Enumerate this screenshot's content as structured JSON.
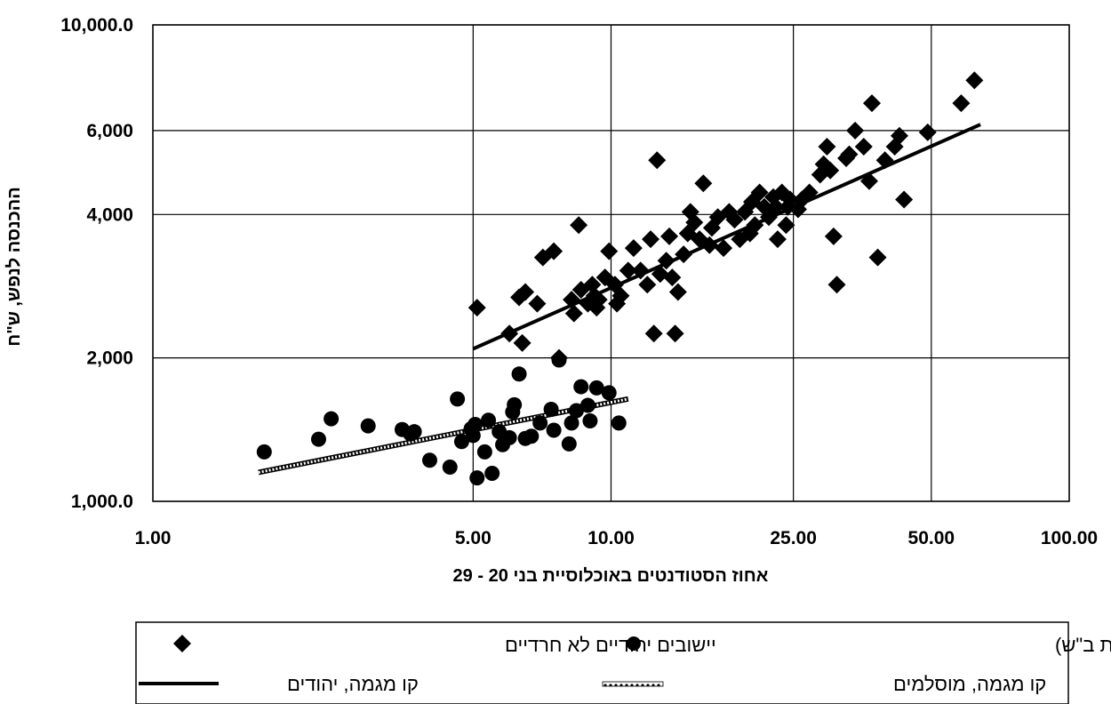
{
  "chart_data": {
    "type": "scatter",
    "title": "",
    "xlabel": "אחוז הסטודנטים באוכלוסיית בני 20 - 29",
    "ylabel": "ההכנסה לנפש, ש\"ח",
    "x_scale": "log",
    "y_scale": "log",
    "xlim": [
      1,
      100
    ],
    "ylim": [
      1000,
      10000
    ],
    "x_ticks": [
      {
        "value": 1,
        "label": "1.00"
      },
      {
        "value": 5,
        "label": "5.00"
      },
      {
        "value": 10,
        "label": "10.00"
      },
      {
        "value": 25,
        "label": "25.00"
      },
      {
        "value": 50,
        "label": "50.00"
      },
      {
        "value": 100,
        "label": "100.00"
      }
    ],
    "y_ticks": [
      {
        "value": 1000,
        "label": "1,000.0"
      },
      {
        "value": 2000,
        "label": "2,000"
      },
      {
        "value": 4000,
        "label": "4,000"
      },
      {
        "value": 6000,
        "label": "6,000"
      },
      {
        "value": 10000,
        "label": "10,000.0"
      }
    ],
    "grid": true,
    "legend_position": "bottom",
    "series": [
      {
        "name": "יישובים יהודיים לא חרדיים",
        "marker": "diamond",
        "color": "#000000",
        "points": [
          [
            5.1,
            2550
          ],
          [
            6.0,
            2250
          ],
          [
            6.3,
            2680
          ],
          [
            6.5,
            2750
          ],
          [
            6.4,
            2150
          ],
          [
            6.9,
            2600
          ],
          [
            7.1,
            3250
          ],
          [
            7.5,
            3350
          ],
          [
            7.7,
            2000
          ],
          [
            8.2,
            2650
          ],
          [
            8.3,
            2480
          ],
          [
            8.5,
            3800
          ],
          [
            8.6,
            2780
          ],
          [
            8.9,
            2600
          ],
          [
            9.1,
            2850
          ],
          [
            9.2,
            2700
          ],
          [
            9.3,
            2550
          ],
          [
            9.4,
            2650
          ],
          [
            9.7,
            2950
          ],
          [
            9.9,
            3350
          ],
          [
            10.2,
            2850
          ],
          [
            10.3,
            2600
          ],
          [
            10.5,
            2700
          ],
          [
            10.9,
            3050
          ],
          [
            11.2,
            3400
          ],
          [
            11.6,
            3050
          ],
          [
            12.0,
            2850
          ],
          [
            12.2,
            3550
          ],
          [
            12.4,
            2250
          ],
          [
            12.6,
            5200
          ],
          [
            12.8,
            3000
          ],
          [
            13.2,
            3200
          ],
          [
            13.4,
            3600
          ],
          [
            13.6,
            2950
          ],
          [
            13.8,
            2250
          ],
          [
            14.0,
            2750
          ],
          [
            14.4,
            3300
          ],
          [
            14.7,
            3650
          ],
          [
            14.9,
            4050
          ],
          [
            15.2,
            3850
          ],
          [
            15.6,
            3550
          ],
          [
            15.9,
            4650
          ],
          [
            16.4,
            3450
          ],
          [
            16.6,
            3750
          ],
          [
            17.1,
            3950
          ],
          [
            17.6,
            3400
          ],
          [
            18.1,
            4050
          ],
          [
            18.6,
            3900
          ],
          [
            19.1,
            3550
          ],
          [
            19.6,
            4050
          ],
          [
            20.1,
            3650
          ],
          [
            20.3,
            4250
          ],
          [
            20.6,
            3800
          ],
          [
            21.1,
            4450
          ],
          [
            21.6,
            4150
          ],
          [
            22.1,
            3950
          ],
          [
            22.6,
            4350
          ],
          [
            22.9,
            4150
          ],
          [
            23.1,
            3550
          ],
          [
            23.6,
            4450
          ],
          [
            24.1,
            3800
          ],
          [
            24.3,
            4150
          ],
          [
            24.6,
            4300
          ],
          [
            25.6,
            4100
          ],
          [
            26.1,
            4300
          ],
          [
            27.1,
            4450
          ],
          [
            28.6,
            4850
          ],
          [
            29.1,
            5100
          ],
          [
            29.6,
            5550
          ],
          [
            30.1,
            4950
          ],
          [
            30.6,
            3600
          ],
          [
            31.1,
            2850
          ],
          [
            32.6,
            5250
          ],
          [
            33.1,
            5350
          ],
          [
            34.1,
            6000
          ],
          [
            35.6,
            5550
          ],
          [
            36.6,
            4700
          ],
          [
            37.1,
            6850
          ],
          [
            38.2,
            3250
          ],
          [
            39.6,
            5200
          ],
          [
            41.6,
            5550
          ],
          [
            42.6,
            5850
          ],
          [
            43.6,
            4300
          ],
          [
            49.1,
            5950
          ],
          [
            58.1,
            6850
          ],
          [
            62.1,
            7650
          ]
        ]
      },
      {
        "name": "יישובים מוסלמים (למעט נפת ב\"ש)",
        "marker": "circle",
        "color": "#000000",
        "points": [
          [
            1.75,
            1270
          ],
          [
            2.3,
            1350
          ],
          [
            2.45,
            1490
          ],
          [
            2.95,
            1440
          ],
          [
            3.5,
            1415
          ],
          [
            3.65,
            1385
          ],
          [
            3.72,
            1400
          ],
          [
            4.02,
            1220
          ],
          [
            4.45,
            1180
          ],
          [
            4.62,
            1640
          ],
          [
            4.72,
            1335
          ],
          [
            4.95,
            1420
          ],
          [
            5.0,
            1375
          ],
          [
            5.05,
            1450
          ],
          [
            5.1,
            1120
          ],
          [
            5.3,
            1270
          ],
          [
            5.4,
            1480
          ],
          [
            5.5,
            1145
          ],
          [
            5.7,
            1400
          ],
          [
            5.8,
            1315
          ],
          [
            6.0,
            1360
          ],
          [
            6.1,
            1540
          ],
          [
            6.15,
            1595
          ],
          [
            6.3,
            1850
          ],
          [
            6.5,
            1355
          ],
          [
            6.7,
            1370
          ],
          [
            7.0,
            1460
          ],
          [
            7.4,
            1560
          ],
          [
            7.5,
            1410
          ],
          [
            7.7,
            1980
          ],
          [
            8.1,
            1320
          ],
          [
            8.2,
            1460
          ],
          [
            8.4,
            1550
          ],
          [
            8.6,
            1740
          ],
          [
            8.9,
            1590
          ],
          [
            9.0,
            1475
          ],
          [
            9.3,
            1730
          ],
          [
            9.9,
            1690
          ],
          [
            10.4,
            1460
          ]
        ]
      },
      {
        "name": "קו מגמה, יהודים",
        "type": "line",
        "style": "solid",
        "color": "#000000",
        "points": [
          [
            5.0,
            2090
          ],
          [
            64.0,
            6180
          ]
        ]
      },
      {
        "name": "קו מגמה, מוסלמים",
        "type": "line",
        "style": "dotted",
        "color": "#000000",
        "points": [
          [
            1.7,
            1150
          ],
          [
            10.9,
            1640
          ]
        ]
      }
    ]
  },
  "legend": {
    "items": [
      {
        "label": "יישובים מוסלמים (למעט נפת ב\"ש)",
        "symbol": "circle"
      },
      {
        "label": "יישובים יהודיים לא חרדיים",
        "symbol": "diamond"
      },
      {
        "label": "קו מגמה, מוסלמים",
        "symbol": "dotted-line"
      },
      {
        "label": "קו מגמה, יהודים",
        "symbol": "solid-line"
      }
    ]
  }
}
